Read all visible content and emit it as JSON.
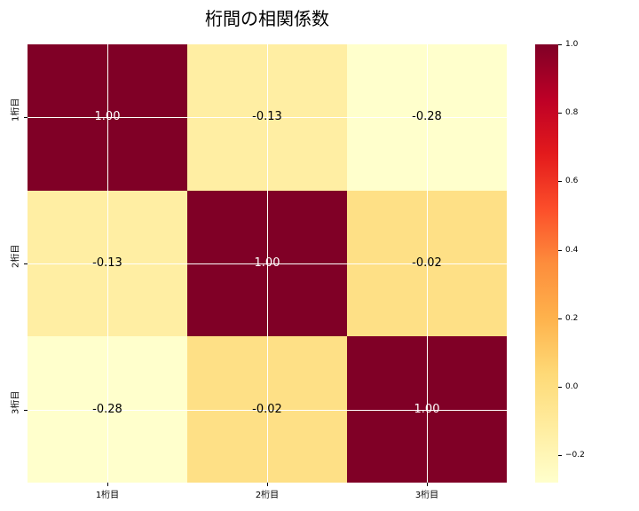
{
  "chart_data": {
    "type": "heatmap",
    "title": "桁間の相関係数",
    "x_categories": [
      "1桁目",
      "2桁目",
      "3桁目"
    ],
    "y_categories": [
      "1桁目",
      "2桁目",
      "3桁目"
    ],
    "matrix": [
      [
        1.0,
        -0.13,
        -0.28
      ],
      [
        -0.13,
        1.0,
        -0.02
      ],
      [
        -0.28,
        -0.02,
        1.0
      ]
    ],
    "cell_labels": [
      [
        "1.00",
        "-0.13",
        "-0.28"
      ],
      [
        "-0.13",
        "1.00",
        "-0.02"
      ],
      [
        "-0.28",
        "-0.02",
        "1.00"
      ]
    ],
    "cell_colors": [
      [
        "#800026",
        "#ffeea3",
        "#ffffcc"
      ],
      [
        "#ffeea3",
        "#800026",
        "#fee086"
      ],
      [
        "#ffffcc",
        "#fee086",
        "#800026"
      ]
    ],
    "cell_text_colors": [
      [
        "#ffffff",
        "#000000",
        "#000000"
      ],
      [
        "#000000",
        "#ffffff",
        "#000000"
      ],
      [
        "#000000",
        "#000000",
        "#ffffff"
      ]
    ],
    "colormap": "YlOrRd",
    "vmin": -0.28,
    "vmax": 1.0,
    "grid": true,
    "legend_position": "right",
    "colorbar": {
      "ticks": [
        {
          "value": 1.0,
          "label": "1.0"
        },
        {
          "value": 0.8,
          "label": "0.8"
        },
        {
          "value": 0.6,
          "label": "0.6"
        },
        {
          "value": 0.4,
          "label": "0.4"
        },
        {
          "value": 0.2,
          "label": "0.2"
        },
        {
          "value": 0.0,
          "label": "0.0"
        },
        {
          "value": -0.2,
          "label": "−0.2"
        }
      ],
      "gradient_stops": [
        {
          "offset": 0.0,
          "color": "#800026"
        },
        {
          "offset": 0.125,
          "color": "#bd0026"
        },
        {
          "offset": 0.25,
          "color": "#e31a1c"
        },
        {
          "offset": 0.375,
          "color": "#fc4e2a"
        },
        {
          "offset": 0.5,
          "color": "#fd8d3c"
        },
        {
          "offset": 0.625,
          "color": "#feb24c"
        },
        {
          "offset": 0.75,
          "color": "#fed976"
        },
        {
          "offset": 0.875,
          "color": "#ffeda0"
        },
        {
          "offset": 1.0,
          "color": "#ffffcc"
        }
      ]
    }
  }
}
